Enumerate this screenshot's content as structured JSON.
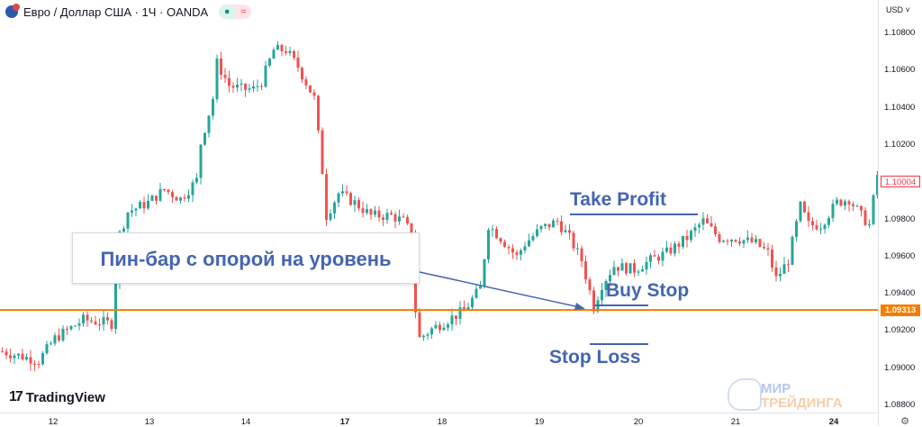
{
  "header": {
    "symbol": "Евро / Доллар США · 1Ч · OANDA",
    "status_icon": "market-open-dot",
    "mode_icon": "approx-wave"
  },
  "price_axis": {
    "currency": "USD",
    "labels": [
      "1.10800",
      "1.10600",
      "1.10400",
      "1.10200",
      "1.09800",
      "1.09600",
      "1.09400",
      "1.09200",
      "1.09000",
      "1.08800"
    ],
    "last_price": "1.10004",
    "level_price": "1.09313"
  },
  "time_axis": {
    "labels": [
      {
        "t": "12",
        "bold": false
      },
      {
        "t": "13",
        "bold": false
      },
      {
        "t": "14",
        "bold": false
      },
      {
        "t": "17",
        "bold": true
      },
      {
        "t": "18",
        "bold": false
      },
      {
        "t": "19",
        "bold": false
      },
      {
        "t": "20",
        "bold": false
      },
      {
        "t": "21",
        "bold": false
      },
      {
        "t": "24",
        "bold": true
      }
    ]
  },
  "branding": {
    "tradingview": "TradingView",
    "watermark_line1": "МИР",
    "watermark_line2": "ТРЕЙДИНГА"
  },
  "annotations": {
    "callout": "Пин-бар с опорой на уровень",
    "take_profit": "Take Profit",
    "buy_stop": "Buy Stop",
    "stop_loss": "Stop Loss"
  },
  "colors": {
    "up": "#26a69a",
    "down": "#ef5350",
    "level": "#f57c00",
    "annotation": "#4565b0"
  },
  "chart_data": {
    "type": "candlestick",
    "symbol": "EURUSD",
    "timeframe": "1H",
    "ylim": [
      1.0876,
      1.1096
    ],
    "level": 1.09313,
    "last": 1.10004,
    "path": [
      [
        0,
        1.0909
      ],
      [
        9,
        1.0904
      ],
      [
        13,
        1.0916
      ],
      [
        20,
        1.0926
      ],
      [
        27,
        1.0924
      ],
      [
        29,
        1.0972
      ],
      [
        31,
        1.0984
      ],
      [
        36,
        1.0989
      ],
      [
        40,
        1.0996
      ],
      [
        44,
        1.0991
      ],
      [
        48,
        1.1001
      ],
      [
        49,
        1.1021
      ],
      [
        52,
        1.1045
      ],
      [
        53,
        1.1064
      ],
      [
        56,
        1.1052
      ],
      [
        59,
        1.105
      ],
      [
        62,
        1.105
      ],
      [
        64,
        1.1054
      ],
      [
        67,
        1.1071
      ],
      [
        70,
        1.1071
      ],
      [
        73,
        1.1062
      ],
      [
        77,
        1.1045
      ],
      [
        79,
        1.1006
      ],
      [
        80,
        1.0982
      ],
      [
        83,
        1.0994
      ],
      [
        87,
        1.0989
      ],
      [
        91,
        1.0982
      ],
      [
        96,
        1.0982
      ],
      [
        99,
        1.0979
      ],
      [
        101,
        1.0972
      ],
      [
        102,
        1.0931
      ],
      [
        103,
        1.0916
      ],
      [
        106,
        1.0921
      ],
      [
        110,
        1.0926
      ],
      [
        114,
        1.0931
      ],
      [
        118,
        1.0943
      ],
      [
        120,
        1.0977
      ],
      [
        123,
        1.097
      ],
      [
        127,
        1.096
      ],
      [
        129,
        1.0967
      ],
      [
        133,
        1.0975
      ],
      [
        137,
        1.0979
      ],
      [
        140,
        1.097
      ],
      [
        143,
        1.0958
      ],
      [
        146,
        1.0933
      ],
      [
        148,
        1.0945
      ],
      [
        151,
        1.0955
      ],
      [
        156,
        1.0953
      ],
      [
        160,
        1.0958
      ],
      [
        164,
        1.0962
      ],
      [
        169,
        1.097
      ],
      [
        173,
        1.0979
      ],
      [
        177,
        1.097
      ],
      [
        181,
        1.097
      ],
      [
        186,
        1.0967
      ],
      [
        189,
        1.0962
      ],
      [
        191,
        1.0948
      ],
      [
        194,
        1.0958
      ],
      [
        197,
        1.0987
      ],
      [
        199,
        1.0977
      ],
      [
        202,
        1.0977
      ],
      [
        206,
        1.0989
      ],
      [
        209,
        1.0991
      ],
      [
        212,
        1.0982
      ],
      [
        214,
        1.0977
      ],
      [
        216,
        1.1004
      ]
    ]
  }
}
